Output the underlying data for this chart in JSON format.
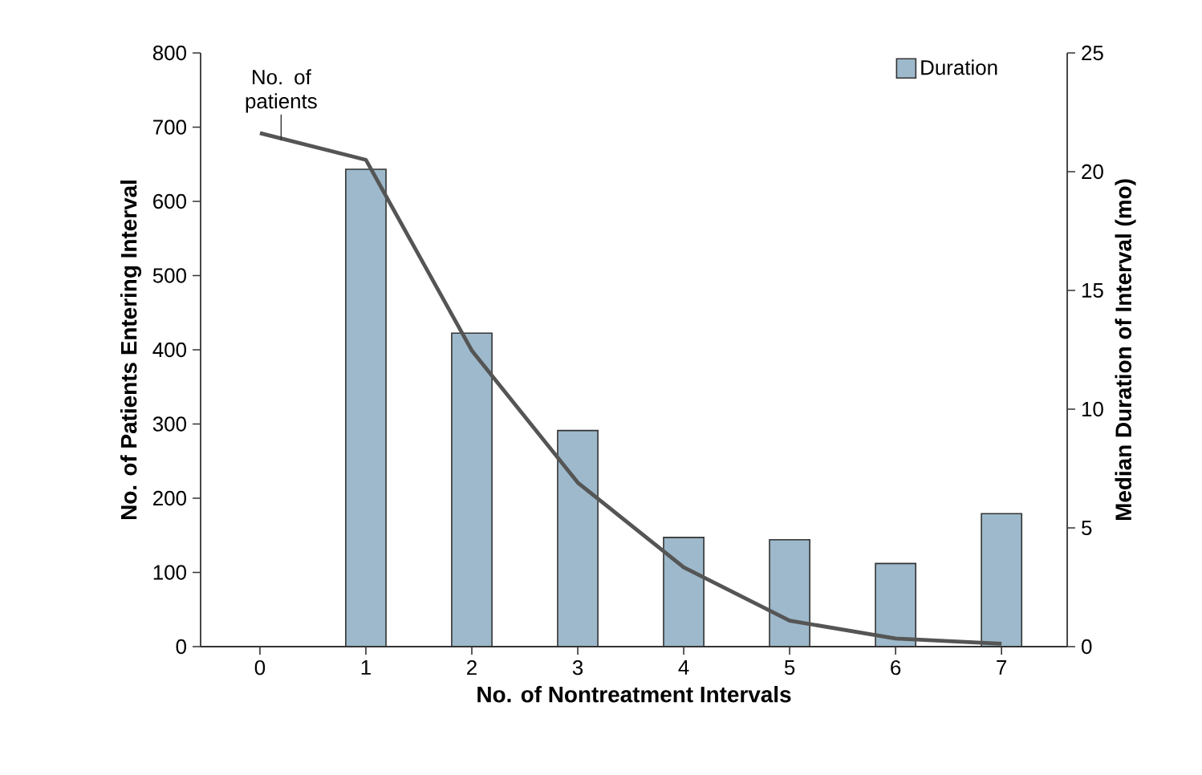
{
  "chart_data": {
    "type": "bar",
    "categories": [
      "0",
      "1",
      "2",
      "3",
      "4",
      "5",
      "6",
      "7"
    ],
    "xlabel": "No. of Nontreatment Intervals",
    "ylabel": "No. of Patients Entering Interval",
    "y2label": "Median Duration of Interval (mo)",
    "ylim": [
      0,
      800
    ],
    "yticks": [
      0,
      100,
      200,
      300,
      400,
      500,
      600,
      700,
      800
    ],
    "y2lim": [
      0,
      25
    ],
    "y2ticks": [
      0,
      5,
      10,
      15,
      20,
      25
    ],
    "legend": "top right",
    "series": [
      {
        "name": "No. of patients",
        "type": "line",
        "color": "#555555",
        "values": [
          692,
          656,
          399,
          221,
          107,
          35,
          11,
          4
        ]
      },
      {
        "name": "Duration",
        "axis": "y2",
        "color": "#9db9cb",
        "values": [
          null,
          20.1,
          13.2,
          9.1,
          4.6,
          4.5,
          3.5,
          5.6
        ]
      }
    ]
  }
}
